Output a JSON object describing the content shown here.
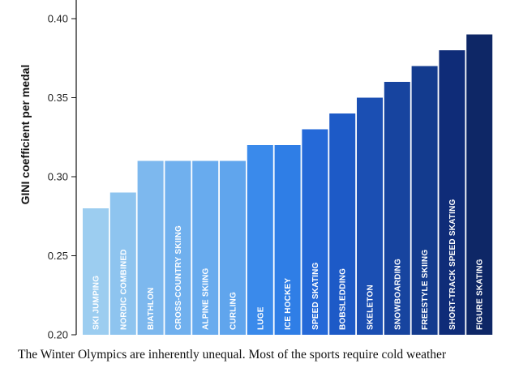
{
  "caption": "The Winter Olympics are inherently unequal. Most of the sports require cold weather",
  "chart_data": {
    "type": "bar",
    "title": "",
    "xlabel": "",
    "ylabel": "GINI coefficient per medal",
    "ylim": [
      0.2,
      0.4
    ],
    "yticks": [
      "0.20",
      "0.25",
      "0.30",
      "0.35",
      "0.40"
    ],
    "grid": false,
    "legend": "none",
    "categories": [
      "SKI JUMPING",
      "NORDIC COMBINED",
      "BIATHLON",
      "CROSS-COUNTRY SKIING",
      "ALPINE SKIING",
      "CURLING",
      "LUGE",
      "ICE HOCKEY",
      "SPEED SKATING",
      "BOBSLEDDING",
      "SKELETON",
      "SNOWBOARDING",
      "FREESTYLE SKIING",
      "SHORT-TRACK SPEED SKATING",
      "FIGURE SKATING"
    ],
    "values": [
      0.28,
      0.29,
      0.31,
      0.31,
      0.31,
      0.31,
      0.32,
      0.32,
      0.33,
      0.34,
      0.35,
      0.36,
      0.37,
      0.38,
      0.39
    ],
    "colors": [
      "#9ccdf0",
      "#8ec4ef",
      "#7db8ee",
      "#70b0ee",
      "#68abee",
      "#60a5ed",
      "#3a8aeb",
      "#2f7ee6",
      "#2569d8",
      "#1d5ac7",
      "#1b4fb3",
      "#17449f",
      "#133b8e",
      "#0f2c78",
      "#0e2766"
    ]
  }
}
